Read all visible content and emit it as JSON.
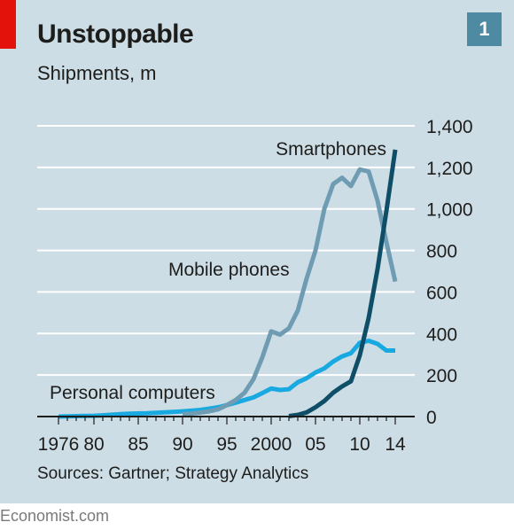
{
  "header": {
    "title": "Unstoppable",
    "subtitle": "Shipments, m",
    "chart_number": "1"
  },
  "footer": {
    "source": "Sources: Gartner; Strategy Analytics",
    "brand": "Economist.com"
  },
  "colors": {
    "background": "#cddde6",
    "brand_red": "#e3120b",
    "personal_computers": "#19a9e1",
    "mobile_phones": "#6f9cb3",
    "smartphones": "#0f4e67",
    "number_box": "#4f8aa3"
  },
  "chart_data": {
    "type": "line",
    "title": "Unstoppable",
    "ylabel": "Shipments, m",
    "xlim": [
      1976,
      2014
    ],
    "ylim": [
      0,
      1400
    ],
    "y_ticks": [
      0,
      200,
      400,
      600,
      800,
      1000,
      1200,
      1400
    ],
    "y_tick_labels": [
      "0",
      "200",
      "400",
      "600",
      "800",
      "1,000",
      "1,200",
      "1,400"
    ],
    "y_axis_side": "right",
    "x_ticks": [
      1976,
      1980,
      1985,
      1990,
      1995,
      2000,
      2005,
      2010,
      2014
    ],
    "x_tick_labels": [
      "1976",
      "80",
      "85",
      "90",
      "95",
      "2000",
      "05",
      "10",
      "14"
    ],
    "grid": true,
    "series": [
      {
        "name": "Personal computers",
        "color_key": "personal_computers",
        "x": [
          1976,
          1977,
          1978,
          1979,
          1980,
          1981,
          1982,
          1983,
          1984,
          1985,
          1986,
          1987,
          1988,
          1989,
          1990,
          1991,
          1992,
          1993,
          1994,
          1995,
          1996,
          1997,
          1998,
          1999,
          2000,
          2001,
          2002,
          2003,
          2004,
          2005,
          2006,
          2007,
          2008,
          2009,
          2010,
          2011,
          2012,
          2013,
          2014
        ],
        "values": [
          0,
          1,
          2,
          3,
          4,
          6,
          9,
          12,
          14,
          15,
          16,
          18,
          20,
          22,
          25,
          28,
          32,
          38,
          45,
          55,
          67,
          80,
          92,
          113,
          135,
          128,
          132,
          165,
          185,
          212,
          232,
          265,
          290,
          305,
          355,
          365,
          350,
          318,
          318
        ]
      },
      {
        "name": "Mobile phones",
        "color_key": "mobile_phones",
        "x": [
          1990,
          1991,
          1992,
          1993,
          1994,
          1995,
          1996,
          1997,
          1998,
          1999,
          2000,
          2001,
          2002,
          2003,
          2004,
          2005,
          2006,
          2007,
          2008,
          2009,
          2010,
          2011,
          2012,
          2013,
          2014
        ],
        "values": [
          11,
          14,
          19,
          25,
          35,
          55,
          80,
          115,
          180,
          285,
          410,
          395,
          425,
          510,
          665,
          800,
          1000,
          1120,
          1150,
          1110,
          1190,
          1180,
          1040,
          840,
          650
        ]
      },
      {
        "name": "Smartphones",
        "color_key": "smartphones",
        "x": [
          2002,
          2003,
          2004,
          2005,
          2006,
          2007,
          2008,
          2009,
          2010,
          2011,
          2012,
          2013,
          2014
        ],
        "values": [
          2,
          8,
          20,
          45,
          75,
          115,
          145,
          170,
          295,
          475,
          710,
          990,
          1285
        ]
      }
    ],
    "annotations": [
      {
        "text": "Personal computers",
        "series": "Personal computers"
      },
      {
        "text": "Mobile phones",
        "series": "Mobile phones"
      },
      {
        "text": "Smartphones",
        "series": "Smartphones"
      }
    ]
  }
}
